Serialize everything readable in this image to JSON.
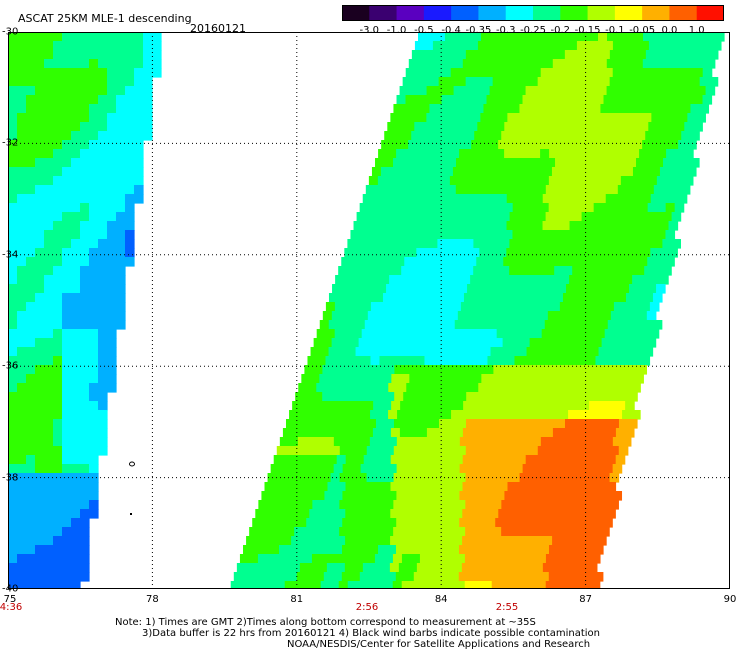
{
  "header": {
    "title": "ASCAT 25KM MLE-1 descending",
    "date": "20160121"
  },
  "colorbar": {
    "labels": [
      "-3.0",
      "-1.0",
      "-0.5",
      "-0.4",
      "-0.35",
      "-0.3",
      "-0.25",
      "-0.2",
      "-0.15",
      "-0.1",
      "-0.05",
      "0.0",
      "1.0"
    ],
    "colors": [
      "#1a0020",
      "#3a0070",
      "#5a00c0",
      "#1a1aff",
      "#0060ff",
      "#00b0ff",
      "#00ffff",
      "#00ff90",
      "#30ff00",
      "#b0ff00",
      "#ffff00",
      "#ffb000",
      "#ff6000",
      "#ff1000"
    ]
  },
  "axes": {
    "lat_labels": [
      "-30",
      "-32",
      "-34",
      "-36",
      "-38",
      "-40"
    ],
    "lon_labels": [
      "75",
      "78",
      "81",
      "84",
      "87",
      "90"
    ],
    "lat_range": [
      -40,
      -30
    ],
    "lon_range": [
      75,
      90
    ]
  },
  "times": [
    "4:36",
    "2:56",
    "2:55"
  ],
  "notes": {
    "line1": "Note: 1) Times are GMT 2)Times along bottom correspond to measurement at ~35S",
    "line2": "3)Data buffer is 22 hrs from 20160121 4) Black wind barbs indicate possible contamination",
    "line3": "NOAA/NESDIS/Center for Satellite Applications and Research"
  }
}
